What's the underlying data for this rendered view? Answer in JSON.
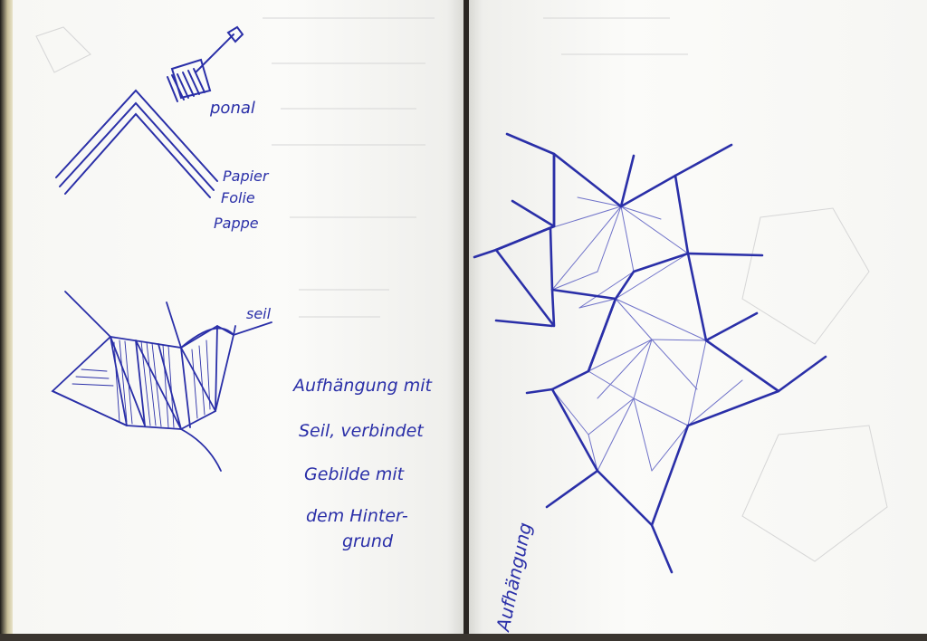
{
  "colors": {
    "ink": "#2a2fa8",
    "ink_light": "#6f72c9",
    "paper": "#fafaf8",
    "ghost": "#cfcfcf"
  },
  "left_page": {
    "material_labels": {
      "ponal": "ponal",
      "papier": "Papier",
      "folie": "Folie",
      "pappe": "Pappe"
    },
    "rope_label": "seil",
    "note_lines": [
      "Aufhängung mit",
      "Seil, verbindet",
      "Gebilde mit",
      "dem Hinter-",
      "grund"
    ]
  },
  "right_page": {
    "vertical_label": "Aufhängung"
  }
}
